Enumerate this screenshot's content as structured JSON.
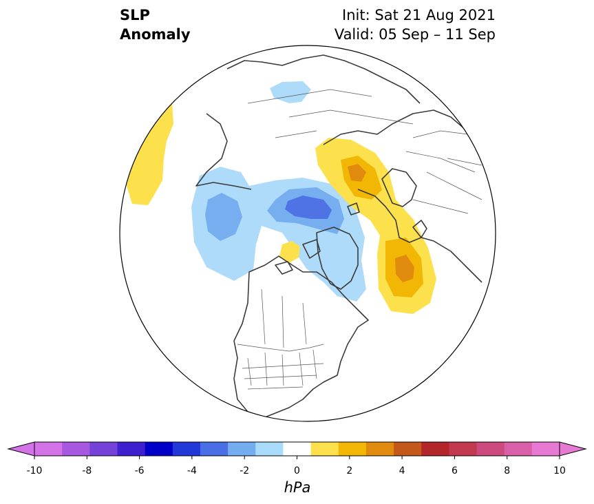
{
  "title": {
    "left_line1": "SLP",
    "left_line2": "Anomaly",
    "right_line1": "Init: Sat 21 Aug 2021",
    "right_line2": "Valid: 05 Sep – 11 Sep"
  },
  "colorbar": {
    "units": "hPa",
    "levels": [
      -10,
      -9,
      -8,
      -7,
      -6,
      -5,
      -4,
      -3,
      -2,
      -1,
      1,
      2,
      3,
      4,
      5,
      6,
      7,
      8,
      9,
      10
    ],
    "colors": [
      "#d473e8",
      "#a857e0",
      "#7442d8",
      "#3f1fd0",
      "#0000c8",
      "#2338d8",
      "#4a6ee6",
      "#72adf0",
      "#a9dbfb",
      "#ffffff",
      "#fde14c",
      "#f2b705",
      "#e08a0e",
      "#c4571a",
      "#b3262a",
      "#c2384f",
      "#cc4a7e",
      "#d95fa8",
      "#e67ad3"
    ],
    "underflow_color": "#d473e8",
    "overflow_color": "#e67ad3",
    "tick_labels": [
      "-10",
      "-8",
      "-6",
      "-4",
      "-2",
      "0",
      "2",
      "4",
      "6",
      "8",
      "10"
    ]
  },
  "map": {
    "projection": "north-polar-stereographic",
    "anomaly_colors": {
      "minus1": "#aedbfa",
      "minus2": "#76aef0",
      "minus3": "#4f72e4",
      "plus1": "#fde14c",
      "plus2": "#f2b705",
      "plus3": "#e08a0e"
    },
    "coastline_color": "#3a3a3a"
  }
}
